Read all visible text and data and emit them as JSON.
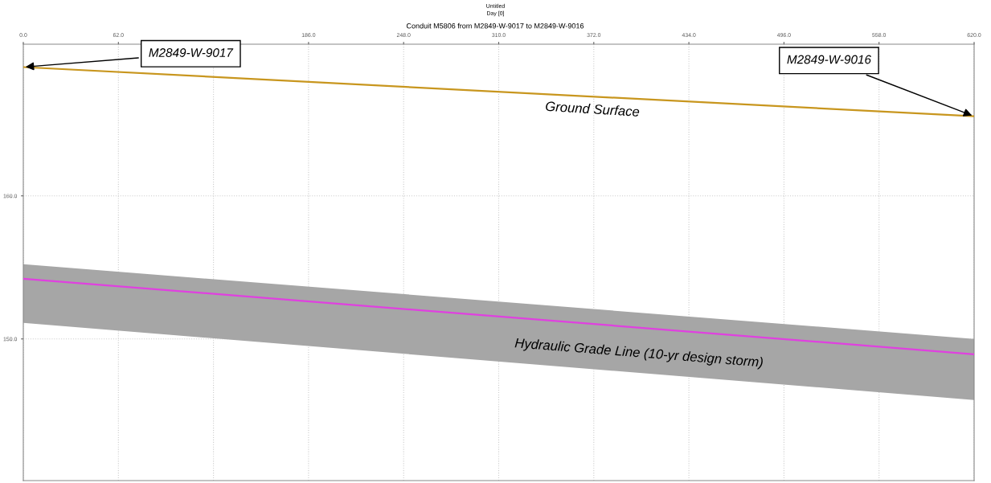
{
  "chart_data": {
    "type": "line",
    "title": "Untitled",
    "subtitle": "Day [0]",
    "x": [
      0,
      620
    ],
    "xlim": [
      0,
      620
    ],
    "xticks": [
      {
        "value": 0,
        "label": "0.0"
      },
      {
        "value": 62,
        "label": "62.0"
      },
      {
        "value": 124,
        "label": null
      },
      {
        "value": 186,
        "label": "186.0"
      },
      {
        "value": 248,
        "label": "248.0"
      },
      {
        "value": 310,
        "label": "310.0"
      },
      {
        "value": 372,
        "label": "372.0"
      },
      {
        "value": 434,
        "label": "434.0"
      },
      {
        "value": 496,
        "label": "496.0"
      },
      {
        "value": 558,
        "label": "558.0"
      },
      {
        "value": 620,
        "label": "620.0"
      }
    ],
    "ylim": [
      140.1,
      170.6
    ],
    "yticks": [
      {
        "value": 150,
        "label": "150.0"
      },
      {
        "value": 160,
        "label": "160.0"
      }
    ],
    "grid": true,
    "series": [
      {
        "color": "#c8961e",
        "values": [
          169.0,
          165.56
        ]
      },
      {
        "color": "#e040e0",
        "values": [
          154.21,
          148.93
        ],
        "lower": [
          151.12,
          145.73
        ],
        "upper": [
          155.22,
          150.0
        ]
      }
    ],
    "annotations": [
      "Conduit M5806 from M2849-W-9017 to M2849-W-9016",
      {
        "text": "M2849-W-9017",
        "x": 0,
        "y": 169.0
      },
      {
        "text": "M2849-W-9016",
        "x": 620,
        "y": 165.56
      },
      "Ground Surface",
      "Hydraulic Grade Line (10-yr design storm)"
    ]
  }
}
